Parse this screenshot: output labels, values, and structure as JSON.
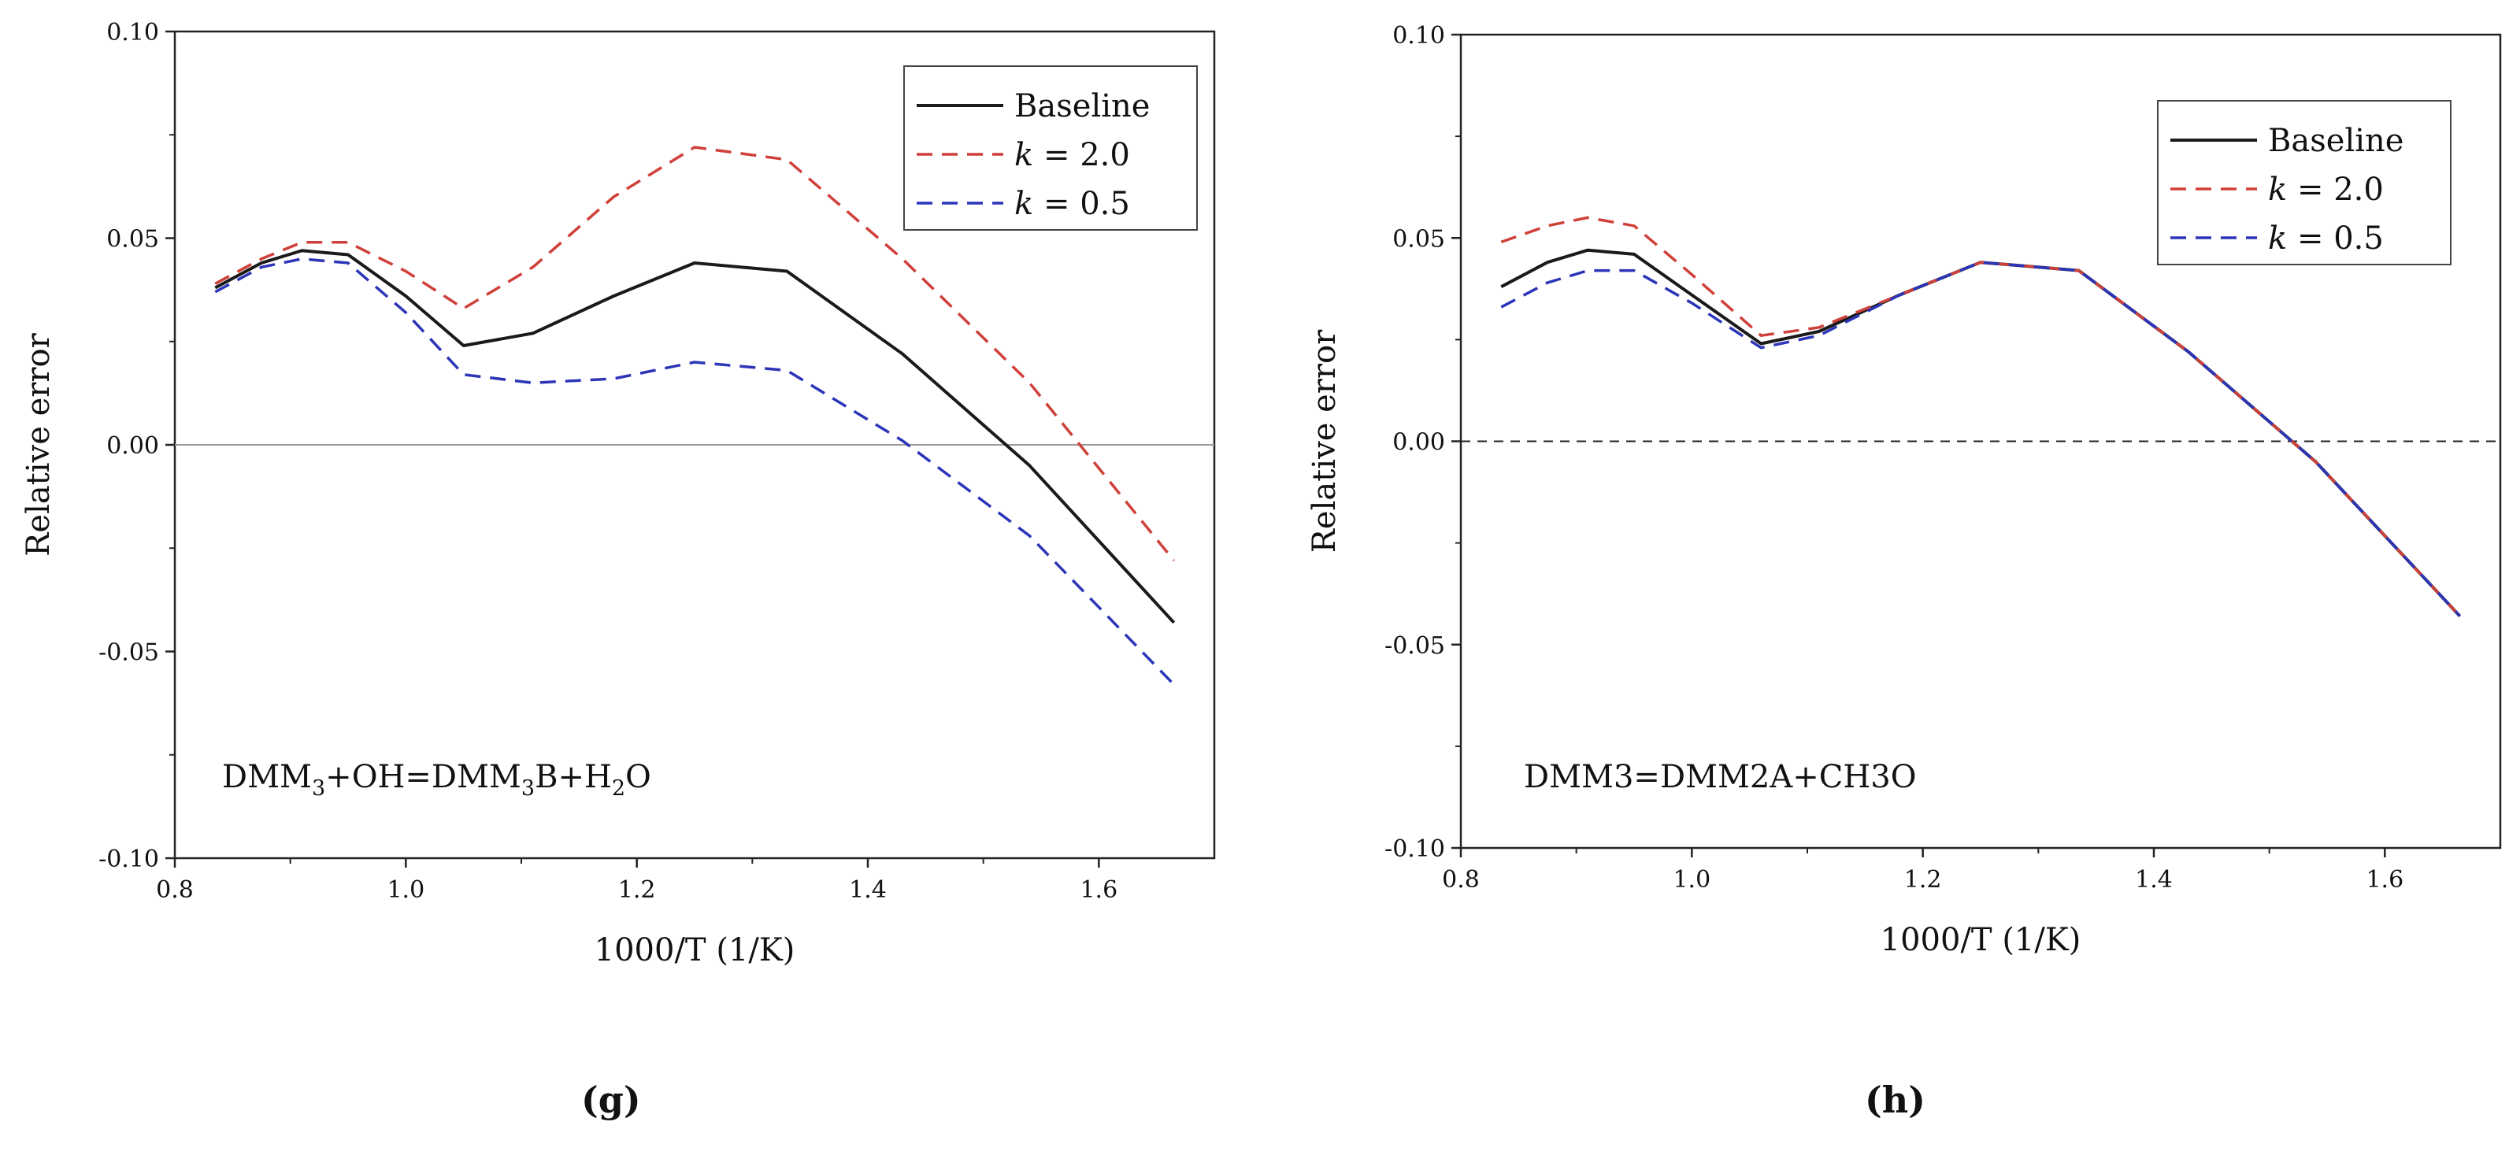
{
  "chart_data": [
    {
      "type": "line",
      "panel": "(g)",
      "annotation_parts": [
        "DMM",
        "3",
        "+OH=DMM",
        "3",
        "B+H",
        "2",
        "O"
      ],
      "xlabel": "1000/T (1/K)",
      "ylabel": "Relative error",
      "xlim": [
        0.8,
        1.7
      ],
      "ylim": [
        -0.1,
        0.1
      ],
      "xticks": [
        0.8,
        1.0,
        1.2,
        1.4,
        1.6
      ],
      "xtick_labels": [
        "0.8",
        "1.0",
        "1.2",
        "1.4",
        "1.6"
      ],
      "yticks": [
        -0.1,
        -0.05,
        0.0,
        0.05,
        0.1
      ],
      "ytick_labels": [
        "-0.10",
        "-0.05",
        "0.00",
        "0.05",
        "0.10"
      ],
      "zero_line": "solid",
      "legend_position": "top-right",
      "series": [
        {
          "name": "Baseline",
          "color": "#1a1a1a",
          "dash": "solid",
          "x": [
            0.835,
            0.875,
            0.91,
            0.95,
            1.0,
            1.05,
            1.11,
            1.18,
            1.25,
            1.33,
            1.43,
            1.54,
            1.665
          ],
          "y": [
            0.038,
            0.044,
            0.047,
            0.046,
            0.036,
            0.024,
            0.027,
            0.036,
            0.044,
            0.042,
            0.022,
            -0.005,
            -0.043
          ]
        },
        {
          "name": "2.0",
          "name_prefix": "k",
          "name_mid": " = ",
          "color": "#d0403a",
          "dash": "dashed",
          "x": [
            0.835,
            0.875,
            0.91,
            0.95,
            1.0,
            1.05,
            1.11,
            1.18,
            1.25,
            1.33,
            1.43,
            1.54,
            1.665
          ],
          "y": [
            0.039,
            0.045,
            0.049,
            0.049,
            0.042,
            0.033,
            0.043,
            0.06,
            0.072,
            0.069,
            0.045,
            0.015,
            -0.028
          ]
        },
        {
          "name": "0.5",
          "name_prefix": "k",
          "name_mid": " = ",
          "color": "#2c35b8",
          "dash": "dashed",
          "x": [
            0.835,
            0.875,
            0.91,
            0.95,
            1.0,
            1.05,
            1.11,
            1.18,
            1.25,
            1.33,
            1.43,
            1.54,
            1.665
          ],
          "y": [
            0.037,
            0.043,
            0.045,
            0.044,
            0.032,
            0.017,
            0.015,
            0.016,
            0.02,
            0.018,
            0.001,
            -0.022,
            -0.058
          ]
        }
      ]
    },
    {
      "type": "line",
      "panel": "(h)",
      "annotation_parts": [
        "DMM3=DMM2A+CH3O"
      ],
      "xlabel": "1000/T (1/K)",
      "ylabel": "Relative error",
      "xlim": [
        0.8,
        1.7
      ],
      "ylim": [
        -0.1,
        0.1
      ],
      "xticks": [
        0.8,
        1.0,
        1.2,
        1.4,
        1.6
      ],
      "xtick_labels": [
        "0.8",
        "1.0",
        "1.2",
        "1.4",
        "1.6"
      ],
      "yticks": [
        -0.1,
        -0.05,
        0.0,
        0.05,
        0.1
      ],
      "ytick_labels": [
        "-0.10",
        "-0.05",
        "0.00",
        "0.05",
        "0.10"
      ],
      "zero_line": "dashed",
      "legend_position": "top-right",
      "series": [
        {
          "name": "Baseline",
          "color": "#1a1a1a",
          "dash": "solid",
          "x": [
            0.835,
            0.875,
            0.91,
            0.95,
            1.0,
            1.06,
            1.11,
            1.18,
            1.25,
            1.335,
            1.43,
            1.54,
            1.665
          ],
          "y": [
            0.038,
            0.044,
            0.047,
            0.046,
            0.036,
            0.024,
            0.027,
            0.036,
            0.044,
            0.042,
            0.022,
            -0.005,
            -0.043
          ]
        },
        {
          "name": "2.0",
          "name_prefix": "k",
          "name_mid": " = ",
          "color": "#d0403a",
          "dash": "dashed",
          "x": [
            0.835,
            0.875,
            0.91,
            0.95,
            1.0,
            1.06,
            1.11,
            1.18,
            1.25,
            1.335,
            1.43,
            1.54,
            1.665
          ],
          "y": [
            0.049,
            0.053,
            0.055,
            0.053,
            0.041,
            0.026,
            0.028,
            0.036,
            0.044,
            0.042,
            0.022,
            -0.005,
            -0.043
          ]
        },
        {
          "name": "0.5",
          "name_prefix": "k",
          "name_mid": " = ",
          "color": "#2c35b8",
          "dash": "dashed",
          "x": [
            0.835,
            0.875,
            0.91,
            0.95,
            1.0,
            1.06,
            1.11,
            1.18,
            1.25,
            1.335,
            1.43,
            1.54,
            1.665
          ],
          "y": [
            0.033,
            0.039,
            0.042,
            0.042,
            0.034,
            0.023,
            0.026,
            0.036,
            0.044,
            0.042,
            0.022,
            -0.005,
            -0.043
          ]
        }
      ]
    }
  ]
}
